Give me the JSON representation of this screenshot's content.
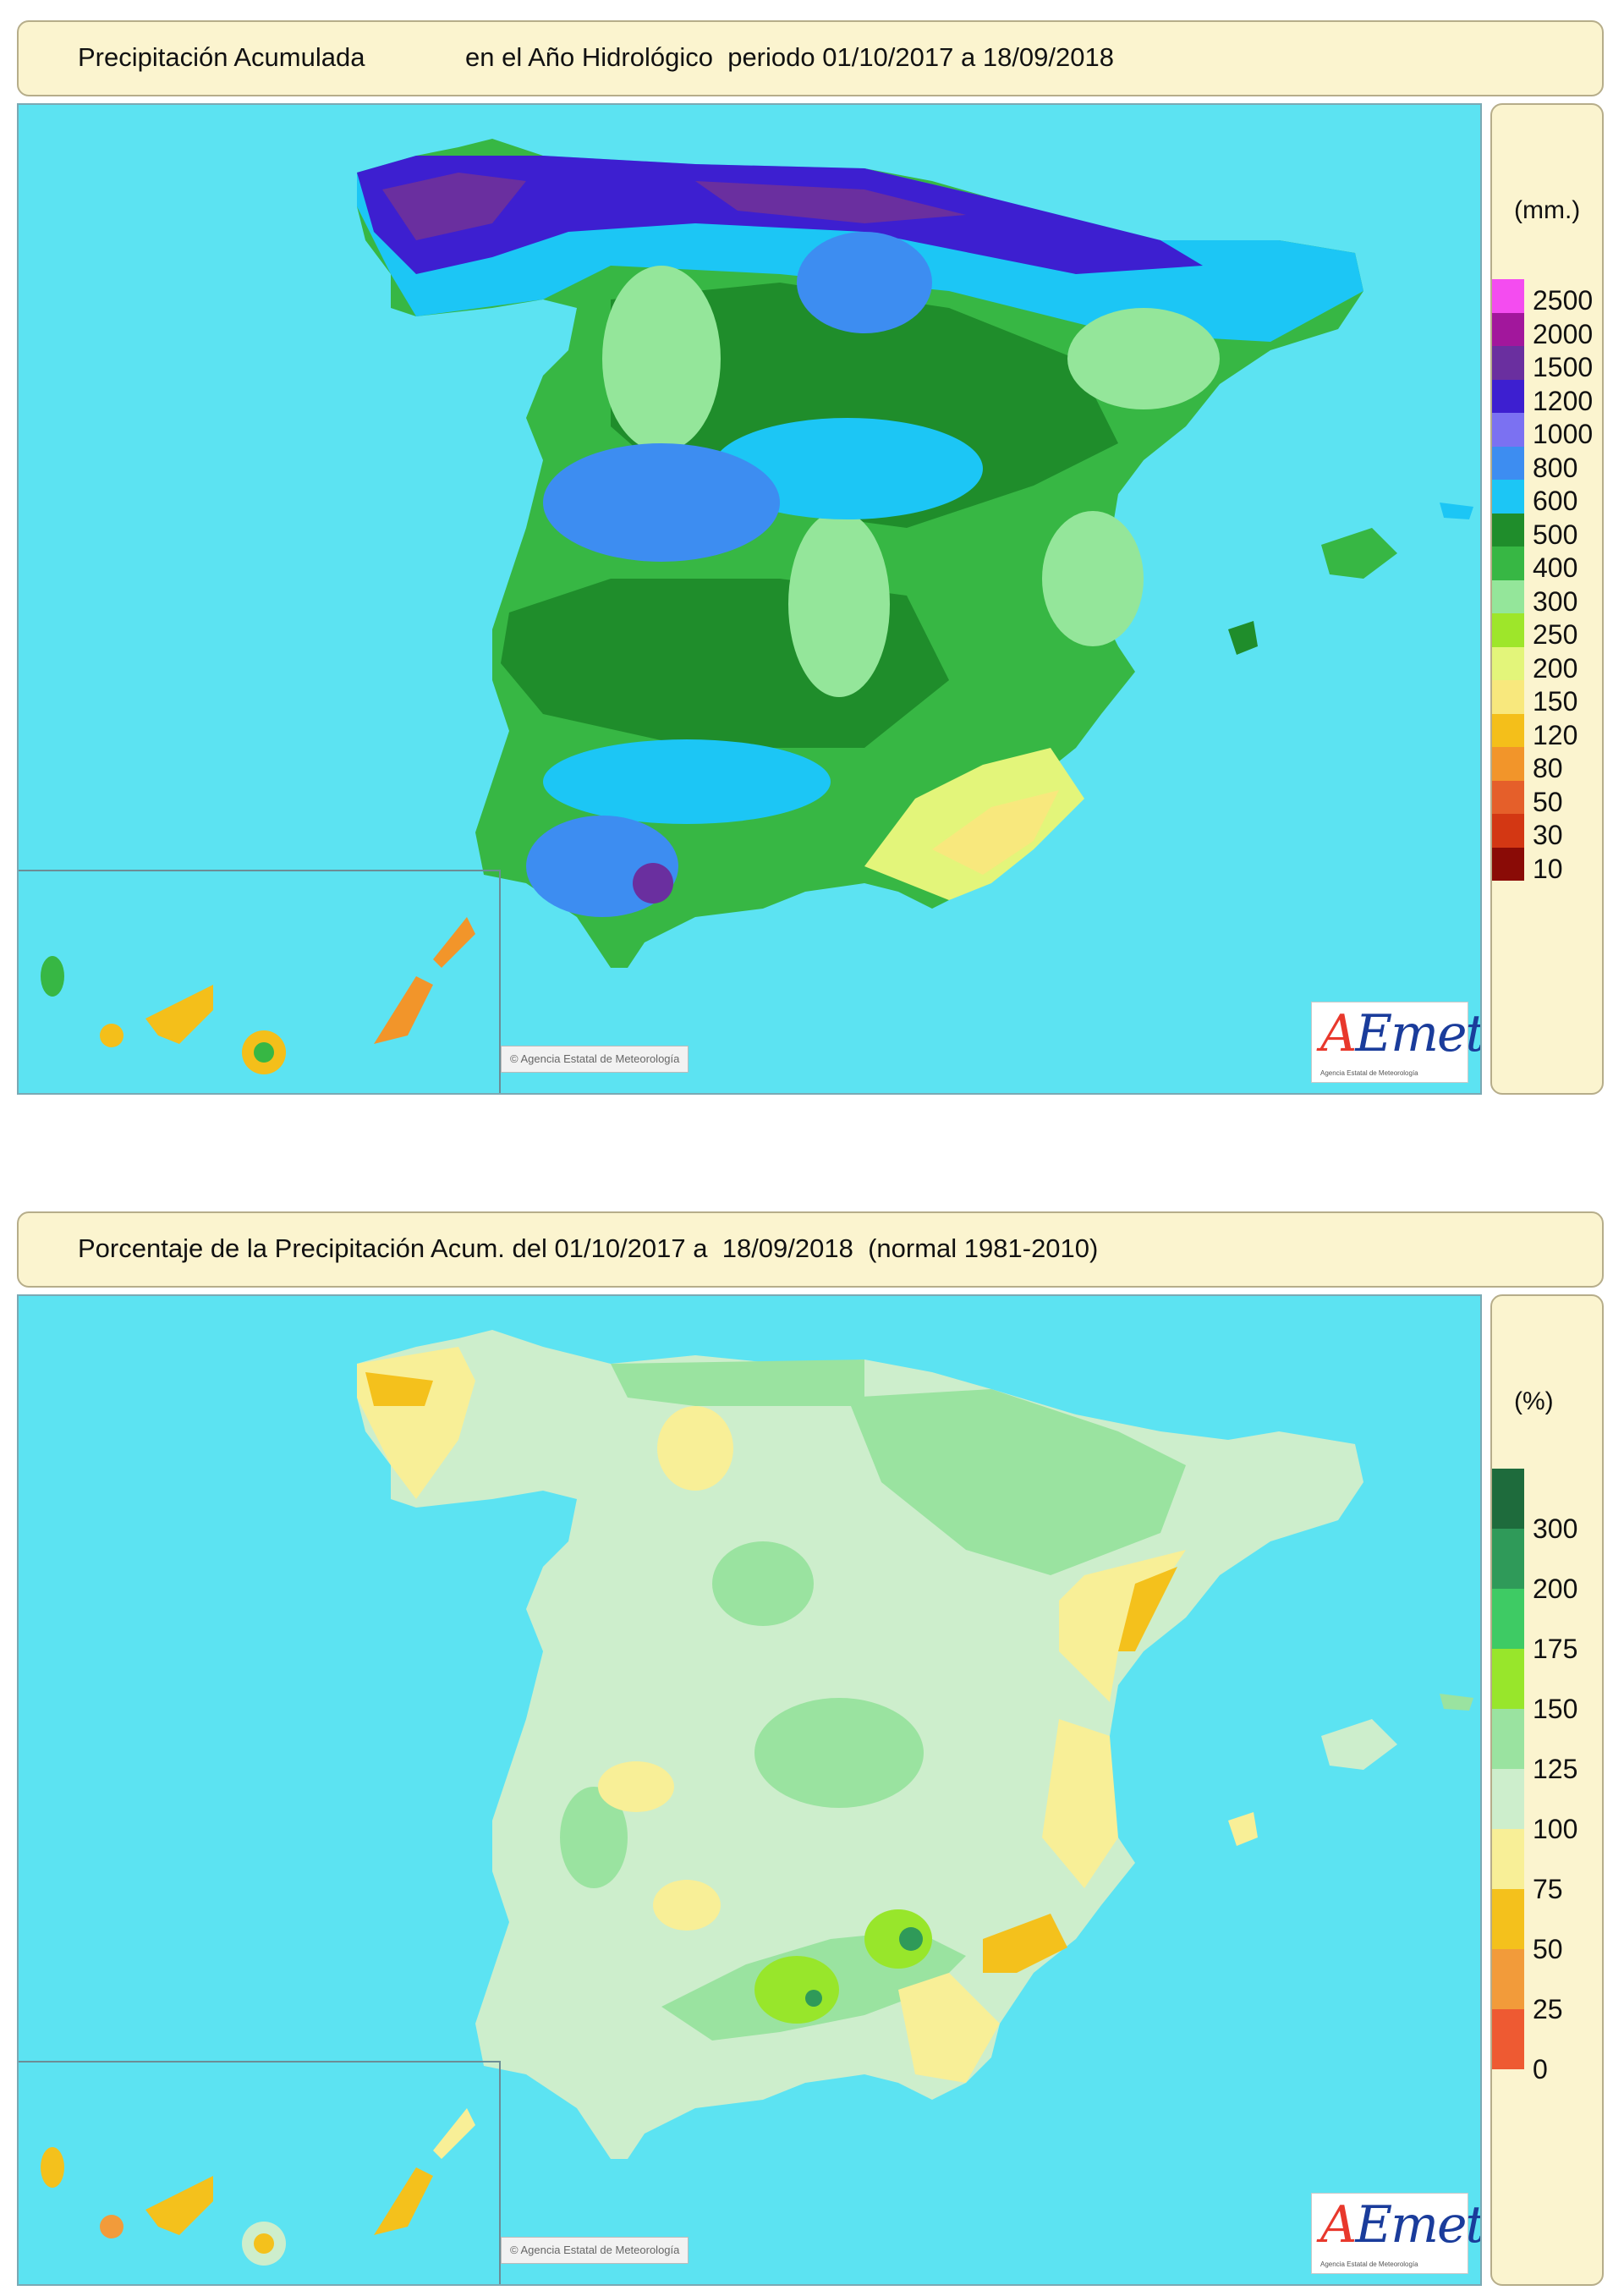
{
  "panel1": {
    "title_left": "Precipitación Acumulada",
    "title_right": "en el Año Hidrológico  periodo 01/10/2017 a 18/09/2018",
    "unit": "(mm.)",
    "legend": [
      {
        "label": "2500",
        "color": "#f44cf0"
      },
      {
        "label": "2000",
        "color": "#a2179c"
      },
      {
        "label": "1500",
        "color": "#6a2f9f"
      },
      {
        "label": "1200",
        "color": "#3d1fd0"
      },
      {
        "label": "1000",
        "color": "#7b71f2"
      },
      {
        "label": "800",
        "color": "#3d8df1"
      },
      {
        "label": "600",
        "color": "#1cc6f5"
      },
      {
        "label": "500",
        "color": "#1f8d2b"
      },
      {
        "label": "400",
        "color": "#37b744"
      },
      {
        "label": "300",
        "color": "#94e69a"
      },
      {
        "label": "250",
        "color": "#9ee62a"
      },
      {
        "label": "200",
        "color": "#e3f57a"
      },
      {
        "label": "150",
        "color": "#f8e87d"
      },
      {
        "label": "120",
        "color": "#f4bf1a"
      },
      {
        "label": "80",
        "color": "#f2952a"
      },
      {
        "label": "50",
        "color": "#e55f2a"
      },
      {
        "label": "30",
        "color": "#d33713"
      },
      {
        "label": "10",
        "color": "#8a0b06"
      }
    ],
    "logo_text": "AEmet",
    "logo_sub": "Agencia Estatal de Meteorología",
    "copyright": "© Agencia Estatal de Meteorología"
  },
  "panel2": {
    "title_left": "Porcentaje de la Precipitación Acum. del 01/10/2017 a  18/09/2018  (normal 1981-2010)",
    "unit": "(%)",
    "legend": [
      {
        "label": "300",
        "color": "#1e6b3c"
      },
      {
        "label": "200",
        "color": "#2f9a59"
      },
      {
        "label": "175",
        "color": "#3ecb64"
      },
      {
        "label": "150",
        "color": "#98e62b"
      },
      {
        "label": "125",
        "color": "#9ae3a0"
      },
      {
        "label": "100",
        "color": "#cdeecc"
      },
      {
        "label": "75",
        "color": "#f8ef97"
      },
      {
        "label": "50",
        "color": "#f4c11c"
      },
      {
        "label": "25",
        "color": "#f29b3a"
      },
      {
        "label": "0",
        "color": "#ee5a32"
      }
    ],
    "logo_text": "AEmet",
    "logo_sub": "Agencia Estatal de Meteorología",
    "copyright": "© Agencia Estatal de Meteorología"
  },
  "colors": {
    "sea": "#5ce3f2",
    "title_bg": "#fbf4cf"
  }
}
